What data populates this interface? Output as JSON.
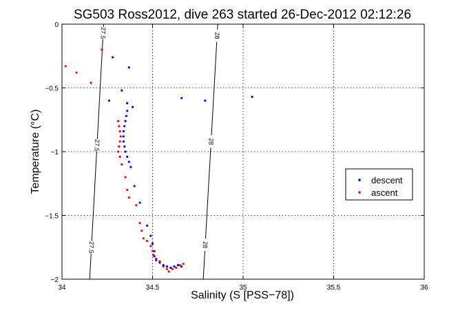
{
  "chart_data": {
    "type": "scatter",
    "title": "SG503 Ross2012, dive 263 started 26-Dec-2012 02:12:26",
    "xlabel": "Salinity (S [PSS−78])",
    "ylabel": "Temperature (°C)",
    "xlim": [
      34,
      36
    ],
    "ylim": [
      -2,
      0
    ],
    "x_ticks": [
      "34",
      "34.5",
      "35",
      "35.5",
      "36"
    ],
    "y_ticks": [
      "0",
      "−0.5",
      "−1",
      "−1.5",
      "−2"
    ],
    "grid": true,
    "legend_position": "right",
    "density_contours": [
      {
        "value": "27.5",
        "points": [
          [
            34.23,
            0
          ],
          [
            34.153,
            -2
          ]
        ],
        "labels": [
          {
            "text": "27.5",
            "t": -0.07
          },
          {
            "text": "27.5",
            "t": -0.95
          },
          {
            "text": "27.5",
            "t": -1.75
          }
        ]
      },
      {
        "value": "28",
        "points": [
          [
            34.86,
            0
          ],
          [
            34.78,
            -2
          ]
        ],
        "labels": [
          {
            "text": "28",
            "t": -0.09
          },
          {
            "text": "28",
            "t": -0.92
          },
          {
            "text": "28",
            "t": -1.73
          }
        ]
      }
    ],
    "series": [
      {
        "name": "descent",
        "color": "#0000ff",
        "points": [
          [
            34.28,
            -0.26
          ],
          [
            34.37,
            -0.34
          ],
          [
            34.26,
            -0.6
          ],
          [
            34.33,
            -0.52
          ],
          [
            34.36,
            -0.62
          ],
          [
            34.39,
            -0.65
          ],
          [
            34.66,
            -0.58
          ],
          [
            34.79,
            -0.6
          ],
          [
            35.05,
            -0.57
          ],
          [
            34.36,
            -0.68
          ],
          [
            34.355,
            -0.72
          ],
          [
            34.35,
            -0.76
          ],
          [
            34.345,
            -0.8
          ],
          [
            34.34,
            -0.84
          ],
          [
            34.34,
            -0.88
          ],
          [
            34.34,
            -0.92
          ],
          [
            34.345,
            -0.96
          ],
          [
            34.35,
            -1.0
          ],
          [
            34.36,
            -1.04
          ],
          [
            34.37,
            -1.08
          ],
          [
            34.38,
            -1.12
          ],
          [
            34.4,
            -1.27
          ],
          [
            34.43,
            -1.4
          ],
          [
            34.47,
            -1.58
          ],
          [
            34.49,
            -1.66
          ],
          [
            34.5,
            -1.72
          ],
          [
            34.51,
            -1.78
          ],
          [
            34.51,
            -1.82
          ],
          [
            34.52,
            -1.85
          ],
          [
            34.54,
            -1.87
          ],
          [
            34.56,
            -1.89
          ],
          [
            34.58,
            -1.9
          ],
          [
            34.6,
            -1.91
          ],
          [
            34.62,
            -1.9
          ],
          [
            34.64,
            -1.89
          ],
          [
            34.66,
            -1.9
          ]
        ]
      },
      {
        "name": "ascent",
        "color": "#ff0000",
        "points": [
          [
            34.02,
            -0.33
          ],
          [
            34.08,
            -0.38
          ],
          [
            34.16,
            -0.46
          ],
          [
            34.22,
            -0.2
          ],
          [
            34.31,
            -0.76
          ],
          [
            34.315,
            -0.8
          ],
          [
            34.32,
            -0.84
          ],
          [
            34.325,
            -0.88
          ],
          [
            34.32,
            -0.92
          ],
          [
            34.315,
            -0.96
          ],
          [
            34.31,
            -1.0
          ],
          [
            34.32,
            -1.04
          ],
          [
            34.33,
            -1.1
          ],
          [
            34.35,
            -1.2
          ],
          [
            34.36,
            -1.3
          ],
          [
            34.37,
            -1.36
          ],
          [
            34.41,
            -1.42
          ],
          [
            34.43,
            -1.56
          ],
          [
            34.44,
            -1.62
          ],
          [
            34.45,
            -1.68
          ],
          [
            34.47,
            -1.7
          ],
          [
            34.49,
            -1.74
          ],
          [
            34.5,
            -1.78
          ],
          [
            34.505,
            -1.81
          ],
          [
            34.52,
            -1.84
          ],
          [
            34.54,
            -1.86
          ],
          [
            34.56,
            -1.9
          ],
          [
            34.58,
            -1.92
          ],
          [
            34.59,
            -1.94
          ],
          [
            34.61,
            -1.92
          ],
          [
            34.63,
            -1.91
          ],
          [
            34.65,
            -1.89
          ],
          [
            34.67,
            -1.88
          ]
        ]
      }
    ]
  }
}
